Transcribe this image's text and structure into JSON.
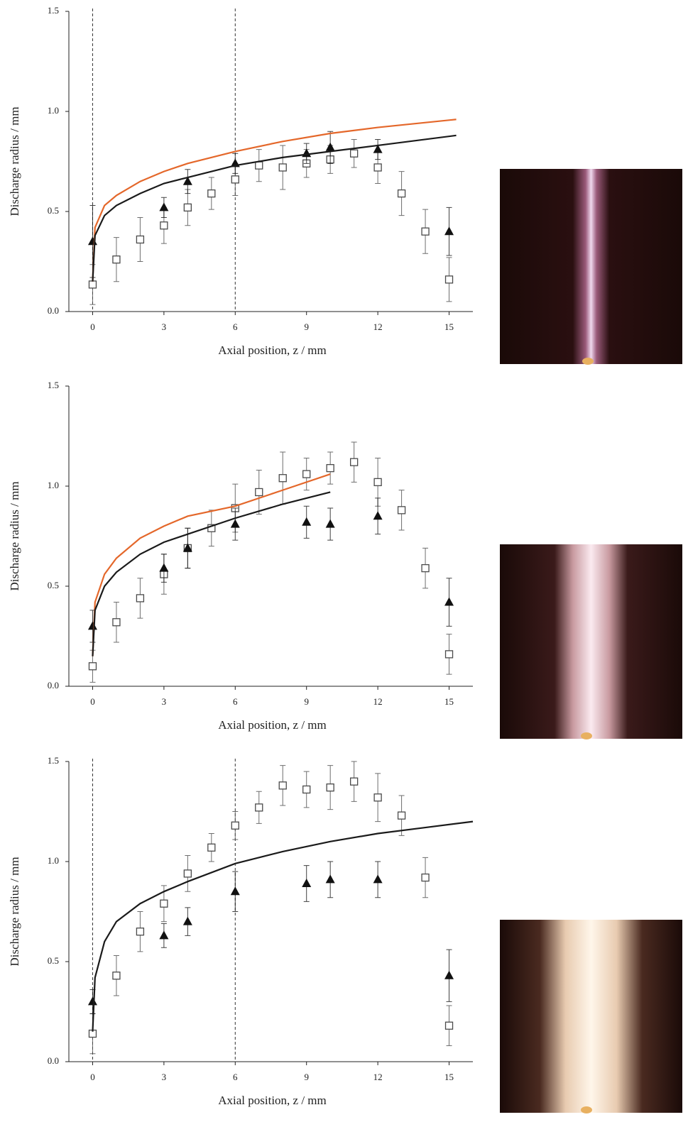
{
  "chart_data": [
    {
      "type": "scatter",
      "x_label": "Axial position, z / mm",
      "y_label": "Discharge radius / mm",
      "xlim": [
        -1,
        16
      ],
      "ylim": [
        0,
        1.5
      ],
      "xticks": [
        0,
        3,
        6,
        9,
        12,
        15
      ],
      "yticks": [
        {
          "value": 0,
          "label": "0.0"
        },
        0.5,
        {
          "value": 1,
          "label": "1.0"
        },
        1.5
      ],
      "vlines": [
        0,
        6
      ],
      "series": [
        {
          "marker": "square",
          "color": "#4a4a4a",
          "x": [
            0,
            1,
            2,
            3,
            4,
            5,
            6,
            7,
            8,
            9,
            10,
            11,
            12,
            13,
            14,
            15
          ],
          "values": [
            0.135,
            0.26,
            0.36,
            0.43,
            0.52,
            0.59,
            0.66,
            0.73,
            0.72,
            0.74,
            0.76,
            0.79,
            0.72,
            0.59,
            0.4,
            0.16
          ],
          "errors": [
            0.1,
            0.11,
            0.11,
            0.09,
            0.09,
            0.08,
            0.08,
            0.08,
            0.11,
            0.07,
            0.07,
            0.07,
            0.08,
            0.11,
            0.11,
            0.11
          ]
        },
        {
          "marker": "triangle",
          "color": "#111111",
          "x": [
            0,
            3,
            4,
            6,
            9,
            10,
            12,
            15
          ],
          "values": [
            0.35,
            0.52,
            0.65,
            0.74,
            0.79,
            0.82,
            0.81,
            0.4
          ],
          "errors": [
            0.18,
            0.05,
            0.06,
            0.05,
            0.05,
            0.08,
            0.05,
            0.12
          ]
        },
        {
          "marker": "line",
          "color": "#e4672a",
          "x": [
            0,
            0.1,
            0.5,
            1,
            2,
            3,
            4,
            6,
            8,
            10,
            12,
            15.3
          ],
          "values": [
            0.15,
            0.42,
            0.53,
            0.58,
            0.65,
            0.7,
            0.74,
            0.8,
            0.85,
            0.89,
            0.92,
            0.96
          ]
        },
        {
          "marker": "line",
          "color": "#1a1a1a",
          "x": [
            0,
            0.1,
            0.5,
            1,
            2,
            3,
            4,
            6,
            8,
            10,
            12,
            15.3
          ],
          "values": [
            0.15,
            0.38,
            0.48,
            0.53,
            0.59,
            0.64,
            0.67,
            0.73,
            0.77,
            0.8,
            0.83,
            0.88
          ]
        }
      ]
    },
    {
      "type": "scatter",
      "x_label": "Axial position, z / mm",
      "y_label": "Discharge radius / mm",
      "xlim": [
        -1,
        16
      ],
      "ylim": [
        0,
        1.5
      ],
      "xticks": [
        0,
        3,
        6,
        9,
        12,
        15
      ],
      "yticks": [
        {
          "value": 0,
          "label": "0.0"
        },
        0.5,
        {
          "value": 1,
          "label": "1.0"
        },
        1.5
      ],
      "vlines": [],
      "series": [
        {
          "marker": "square",
          "color": "#4a4a4a",
          "x": [
            0,
            1,
            2,
            3,
            4,
            5,
            6,
            7,
            8,
            9,
            10,
            11,
            12,
            13,
            14,
            15
          ],
          "values": [
            0.1,
            0.32,
            0.44,
            0.56,
            0.69,
            0.79,
            0.89,
            0.97,
            1.04,
            1.06,
            1.09,
            1.12,
            1.02,
            0.88,
            0.59,
            0.16
          ],
          "errors": [
            0.08,
            0.1,
            0.1,
            0.1,
            0.1,
            0.09,
            0.12,
            0.11,
            0.13,
            0.08,
            0.08,
            0.1,
            0.12,
            0.1,
            0.1,
            0.1
          ]
        },
        {
          "marker": "triangle",
          "color": "#111111",
          "x": [
            0,
            3,
            4,
            6,
            9,
            10,
            12,
            15
          ],
          "values": [
            0.3,
            0.59,
            0.69,
            0.81,
            0.82,
            0.81,
            0.85,
            0.42
          ],
          "errors": [
            0.08,
            0.07,
            0.1,
            0.08,
            0.08,
            0.08,
            0.09,
            0.12
          ]
        },
        {
          "marker": "line",
          "color": "#e4672a",
          "x": [
            0,
            0.1,
            0.5,
            1,
            2,
            3,
            4,
            6,
            8,
            10
          ],
          "values": [
            0.15,
            0.42,
            0.56,
            0.64,
            0.74,
            0.8,
            0.85,
            0.9,
            0.98,
            1.06
          ]
        },
        {
          "marker": "line",
          "color": "#1a1a1a",
          "x": [
            0,
            0.1,
            0.5,
            1,
            2,
            3,
            4,
            6,
            8,
            10
          ],
          "values": [
            0.15,
            0.38,
            0.5,
            0.57,
            0.66,
            0.72,
            0.76,
            0.84,
            0.91,
            0.97
          ]
        }
      ]
    },
    {
      "type": "scatter",
      "x_label": "Axial position, z / mm",
      "y_label": "Discharge radius / mm",
      "xlim": [
        -1,
        16
      ],
      "ylim": [
        0,
        1.5
      ],
      "xticks": [
        0,
        3,
        6,
        9,
        12,
        15
      ],
      "yticks": [
        {
          "value": 0,
          "label": "0.0"
        },
        0.5,
        {
          "value": 1,
          "label": "1.0"
        },
        1.5
      ],
      "vlines": [
        0,
        6
      ],
      "series": [
        {
          "marker": "square",
          "color": "#4a4a4a",
          "x": [
            0,
            1,
            2,
            3,
            4,
            5,
            6,
            7,
            8,
            9,
            10,
            11,
            12,
            13,
            14,
            15
          ],
          "values": [
            0.14,
            0.43,
            0.65,
            0.79,
            0.94,
            1.07,
            1.18,
            1.27,
            1.38,
            1.36,
            1.37,
            1.4,
            1.32,
            1.23,
            0.92,
            0.18
          ],
          "errors": [
            0.1,
            0.1,
            0.1,
            0.09,
            0.09,
            0.07,
            0.07,
            0.08,
            0.1,
            0.09,
            0.11,
            0.1,
            0.12,
            0.1,
            0.1,
            0.1
          ]
        },
        {
          "marker": "triangle",
          "color": "#111111",
          "x": [
            0,
            3,
            4,
            6,
            9,
            10,
            12,
            15
          ],
          "values": [
            0.3,
            0.63,
            0.7,
            0.85,
            0.89,
            0.91,
            0.91,
            0.43
          ],
          "errors": [
            0.06,
            0.06,
            0.07,
            0.1,
            0.09,
            0.09,
            0.09,
            0.13
          ]
        },
        {
          "marker": "line",
          "color": "#1a1a1a",
          "x": [
            0,
            0.1,
            0.5,
            1,
            2,
            3,
            4,
            6,
            8,
            10,
            12,
            14,
            16
          ],
          "values": [
            0.15,
            0.42,
            0.6,
            0.7,
            0.79,
            0.85,
            0.9,
            0.99,
            1.05,
            1.1,
            1.14,
            1.17,
            1.2
          ]
        }
      ]
    }
  ]
}
